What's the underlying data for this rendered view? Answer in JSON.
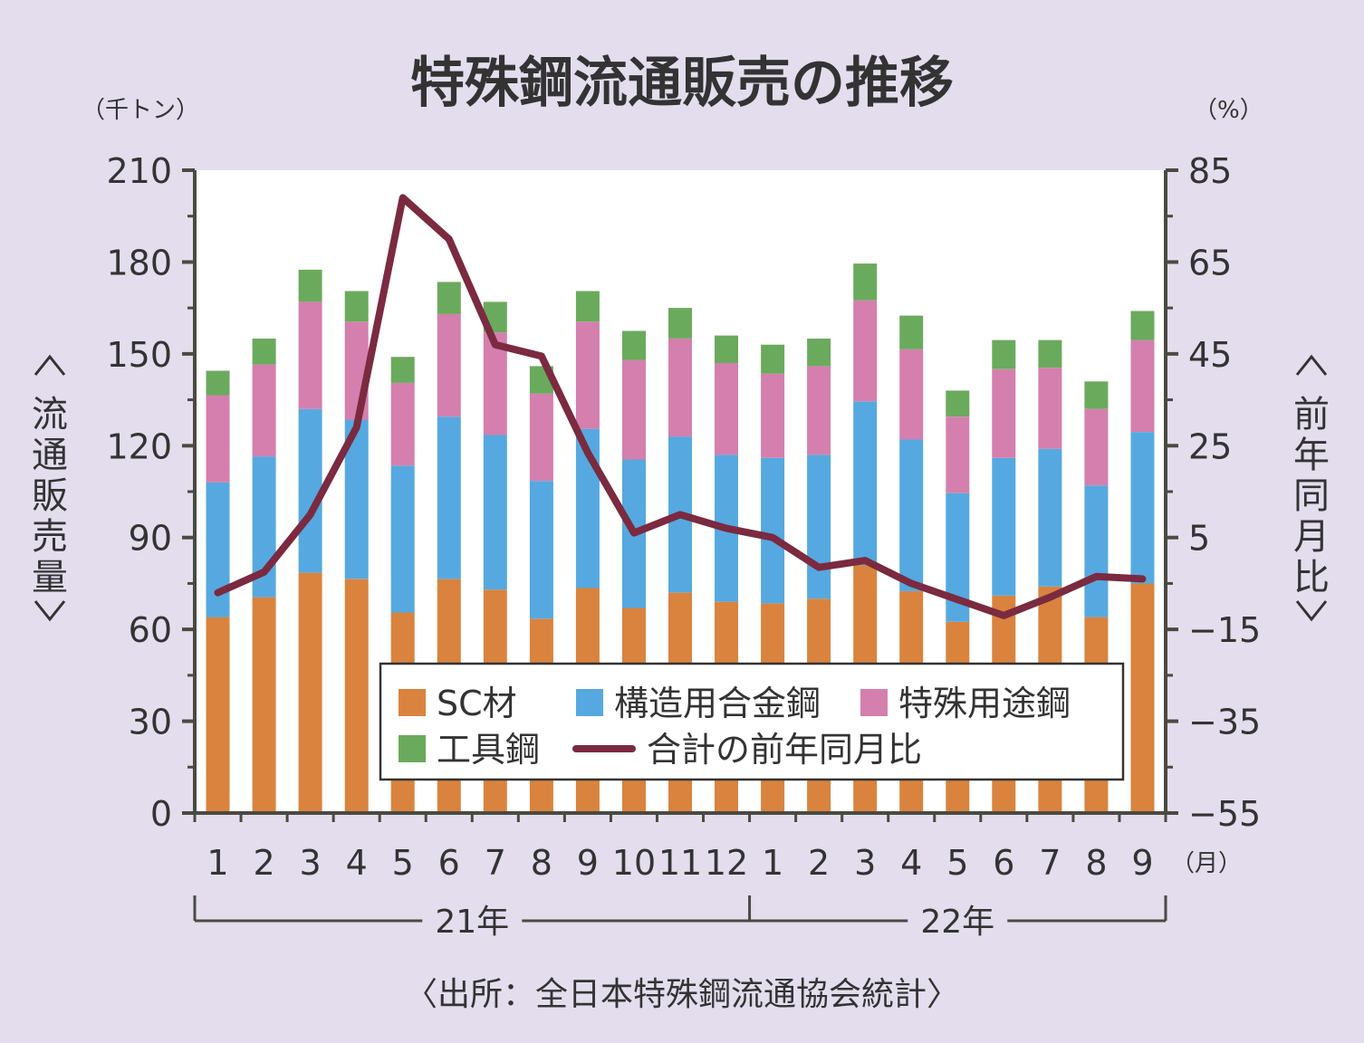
{
  "chart_data": {
    "type": "bar",
    "title": "特殊鋼流通販売の推移",
    "left_axis": {
      "unit": "（千トン）",
      "label": "〈流通販売量〉",
      "ylim": [
        0,
        210
      ],
      "ticks": [
        "0",
        "30",
        "60",
        "90",
        "120",
        "150",
        "180",
        "210"
      ]
    },
    "right_axis": {
      "unit": "（%）",
      "label": "〈前年同月比〉",
      "ylim": [
        -55,
        85
      ],
      "ticks": [
        "−55",
        "−35",
        "−15",
        "5",
        "25",
        "45",
        "65",
        "85"
      ]
    },
    "categories": [
      "1",
      "2",
      "3",
      "4",
      "5",
      "6",
      "7",
      "8",
      "9",
      "10",
      "11",
      "12",
      "1",
      "2",
      "3",
      "4",
      "5",
      "6",
      "7",
      "8",
      "9"
    ],
    "x_unit": "（月）",
    "years": [
      {
        "label": "21年",
        "from": 0,
        "to": 11
      },
      {
        "label": "22年",
        "from": 12,
        "to": 20
      }
    ],
    "series": [
      {
        "name": "SC材",
        "color": "#d9833e",
        "stack": true,
        "values": [
          64,
          70.5,
          78.5,
          76.5,
          65.5,
          76.5,
          73,
          63.5,
          73.5,
          67,
          72,
          69,
          68.5,
          70,
          81,
          72.5,
          62.5,
          71,
          74,
          64,
          75
        ]
      },
      {
        "name": "構造用合金鋼",
        "color": "#55a9e0",
        "stack": true,
        "values": [
          44,
          46,
          53.5,
          52,
          48,
          53,
          50.5,
          45,
          52,
          48.5,
          51,
          48,
          47.5,
          47,
          53.5,
          49.5,
          42,
          45,
          45,
          43,
          49.5
        ]
      },
      {
        "name": "特殊用途鋼",
        "color": "#d47fad",
        "stack": true,
        "values": [
          28.5,
          30,
          35,
          32,
          27,
          33.5,
          33.5,
          28.5,
          35,
          32.5,
          32,
          30,
          27.5,
          29,
          33,
          29.5,
          25,
          29,
          26.5,
          25,
          30
        ]
      },
      {
        "name": "工具鋼",
        "color": "#6aaa5c",
        "stack": true,
        "values": [
          8,
          8.5,
          10.5,
          10,
          8.5,
          10.5,
          10,
          9,
          10,
          9.5,
          10,
          9,
          9.5,
          9,
          12,
          11,
          8.5,
          9.5,
          9,
          9,
          9.5
        ]
      },
      {
        "name": "合計の前年同月比",
        "color": "#7b2a40",
        "axis": "right",
        "type": "line",
        "values": [
          -7,
          -2.5,
          10,
          29,
          79,
          70,
          47,
          44.5,
          23.5,
          6,
          10,
          7,
          5,
          -1.5,
          0,
          -5,
          -8.5,
          -12,
          -8,
          -3.5,
          -4
        ]
      }
    ],
    "legend": {
      "placement": "bottom-right inside plot",
      "items": [
        "SC材",
        "構造用合金鋼",
        "特殊用途鋼",
        "工具鋼",
        "合計の前年同月比"
      ]
    },
    "source": "〈出所：全日本特殊鋼流通協会統計〉"
  }
}
